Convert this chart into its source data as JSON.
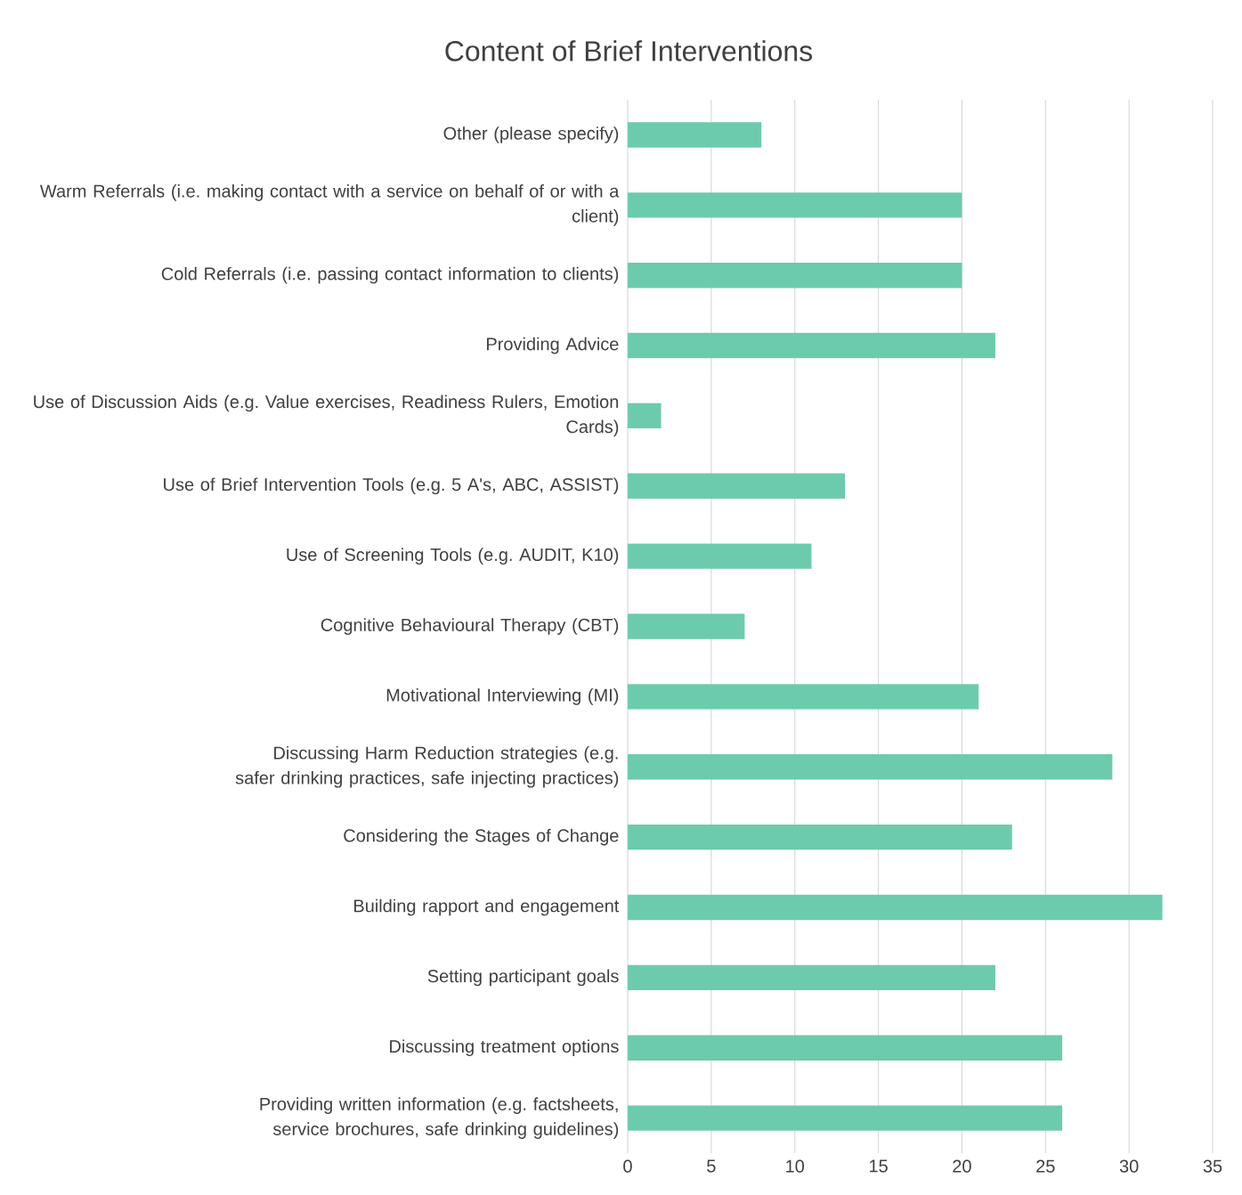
{
  "chart_data": {
    "type": "bar",
    "orientation": "horizontal",
    "title": "Content of Brief Interventions",
    "categories": [
      "Other (please specify)",
      "Warm Referrals (i.e. making contact with a service on behalf of or with a client)",
      "Cold Referrals (i.e. passing contact information to clients)",
      "Providing Advice",
      "Use of Discussion Aids (e.g. Value exercises, Readiness Rulers, Emotion Cards)",
      "Use of Brief Intervention Tools (e.g. 5 A's, ABC, ASSIST)",
      "Use of Screening Tools (e.g. AUDIT, K10)",
      "Cognitive Behavioural Therapy (CBT)",
      "Motivational Interviewing (MI)",
      "Discussing Harm Reduction strategies (e.g. safer drinking practices, safe injecting practices)",
      "Considering the Stages of Change",
      "Building rapport and engagement",
      "Setting participant goals",
      "Discussing treatment options",
      "Providing written information (e.g. factsheets, service brochures, safe drinking guidelines)"
    ],
    "values": [
      8,
      20,
      20,
      22,
      2,
      13,
      11,
      7,
      21,
      29,
      23,
      32,
      22,
      26,
      26
    ],
    "color": "#6dcbad",
    "xlim": [
      0,
      35
    ],
    "xticks": [
      0,
      5,
      10,
      15,
      20,
      25,
      30,
      35
    ],
    "grid": "x"
  }
}
